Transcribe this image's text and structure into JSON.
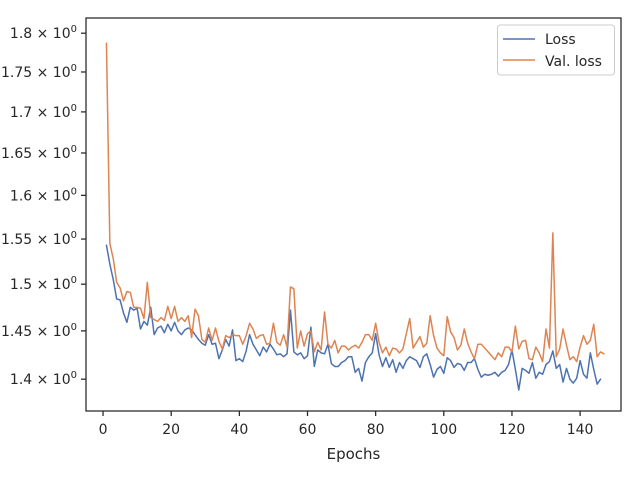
{
  "chart_data": {
    "type": "line",
    "title": "",
    "xlabel": "Epochs",
    "ylabel": "",
    "yscale": "log",
    "xlim": [
      -5,
      152
    ],
    "ylim": [
      1.368,
      1.82
    ],
    "grid": false,
    "legend_position": "top-right",
    "x_ticks": [
      {
        "value": 0,
        "label": "0"
      },
      {
        "value": 20,
        "label": "20"
      },
      {
        "value": 40,
        "label": "40"
      },
      {
        "value": 60,
        "label": "60"
      },
      {
        "value": 80,
        "label": "80"
      },
      {
        "value": 100,
        "label": "100"
      },
      {
        "value": 120,
        "label": "120"
      },
      {
        "value": 140,
        "label": "140"
      }
    ],
    "y_ticks": [
      {
        "value": 1.4,
        "mantissa": "1.4",
        "times": "×",
        "base": "10",
        "exp": "0"
      },
      {
        "value": 1.45,
        "mantissa": "1.45",
        "times": "×",
        "base": "10",
        "exp": "0"
      },
      {
        "value": 1.5,
        "mantissa": "1.5",
        "times": "×",
        "base": "10",
        "exp": "0"
      },
      {
        "value": 1.55,
        "mantissa": "1.55",
        "times": "×",
        "base": "10",
        "exp": "0"
      },
      {
        "value": 1.6,
        "mantissa": "1.6",
        "times": "×",
        "base": "10",
        "exp": "0"
      },
      {
        "value": 1.65,
        "mantissa": "1.65",
        "times": "×",
        "base": "10",
        "exp": "0"
      },
      {
        "value": 1.7,
        "mantissa": "1.7",
        "times": "×",
        "base": "10",
        "exp": "0"
      },
      {
        "value": 1.75,
        "mantissa": "1.75",
        "times": "×",
        "base": "10",
        "exp": "0"
      },
      {
        "value": 1.8,
        "mantissa": "1.8",
        "times": "×",
        "base": "10",
        "exp": "0"
      }
    ],
    "series": [
      {
        "name": "Loss",
        "color": "#4c72b0",
        "x_start": 1,
        "values": [
          1.543,
          1.522,
          1.505,
          1.484,
          1.483,
          1.469,
          1.459,
          1.475,
          1.472,
          1.474,
          1.452,
          1.46,
          1.456,
          1.475,
          1.446,
          1.453,
          1.455,
          1.448,
          1.457,
          1.45,
          1.459,
          1.45,
          1.446,
          1.451,
          1.453,
          1.451,
          1.446,
          1.441,
          1.437,
          1.435,
          1.446,
          1.436,
          1.437,
          1.421,
          1.43,
          1.441,
          1.434,
          1.451,
          1.419,
          1.421,
          1.418,
          1.429,
          1.446,
          1.436,
          1.43,
          1.424,
          1.433,
          1.428,
          1.436,
          1.431,
          1.425,
          1.426,
          1.423,
          1.426,
          1.472,
          1.428,
          1.425,
          1.427,
          1.421,
          1.424,
          1.454,
          1.413,
          1.43,
          1.427,
          1.426,
          1.436,
          1.416,
          1.413,
          1.413,
          1.417,
          1.419,
          1.423,
          1.423,
          1.407,
          1.411,
          1.398,
          1.417,
          1.423,
          1.427,
          1.447,
          1.425,
          1.413,
          1.422,
          1.412,
          1.42,
          1.407,
          1.417,
          1.411,
          1.419,
          1.423,
          1.421,
          1.419,
          1.412,
          1.423,
          1.426,
          1.415,
          1.402,
          1.41,
          1.413,
          1.406,
          1.422,
          1.419,
          1.412,
          1.416,
          1.415,
          1.409,
          1.417,
          1.417,
          1.421,
          1.41,
          1.402,
          1.405,
          1.404,
          1.405,
          1.407,
          1.403,
          1.407,
          1.409,
          1.415,
          1.43,
          1.41,
          1.389,
          1.411,
          1.409,
          1.406,
          1.417,
          1.401,
          1.407,
          1.405,
          1.415,
          1.418,
          1.429,
          1.411,
          1.415,
          1.397,
          1.411,
          1.4,
          1.396,
          1.401,
          1.419,
          1.405,
          1.401,
          1.427,
          1.41,
          1.395,
          1.4
        ]
      },
      {
        "name": "Val. loss",
        "color": "#dd8452",
        "x_start": 1,
        "values": [
          1.787,
          1.545,
          1.528,
          1.502,
          1.496,
          1.482,
          1.492,
          1.491,
          1.475,
          1.475,
          1.474,
          1.463,
          1.502,
          1.464,
          1.462,
          1.46,
          1.464,
          1.461,
          1.476,
          1.463,
          1.476,
          1.46,
          1.464,
          1.46,
          1.466,
          1.443,
          1.473,
          1.466,
          1.441,
          1.438,
          1.453,
          1.44,
          1.453,
          1.439,
          1.431,
          1.445,
          1.443,
          1.446,
          1.445,
          1.445,
          1.436,
          1.445,
          1.458,
          1.452,
          1.442,
          1.445,
          1.446,
          1.436,
          1.437,
          1.458,
          1.438,
          1.435,
          1.446,
          1.433,
          1.497,
          1.495,
          1.432,
          1.45,
          1.434,
          1.447,
          1.45,
          1.428,
          1.438,
          1.43,
          1.47,
          1.436,
          1.432,
          1.44,
          1.427,
          1.434,
          1.434,
          1.43,
          1.433,
          1.435,
          1.432,
          1.438,
          1.446,
          1.446,
          1.44,
          1.458,
          1.438,
          1.427,
          1.433,
          1.424,
          1.432,
          1.431,
          1.427,
          1.431,
          1.447,
          1.463,
          1.432,
          1.438,
          1.444,
          1.433,
          1.437,
          1.466,
          1.445,
          1.432,
          1.427,
          1.424,
          1.465,
          1.449,
          1.443,
          1.43,
          1.435,
          1.452,
          1.437,
          1.428,
          1.421,
          1.436,
          1.436,
          1.432,
          1.428,
          1.424,
          1.42,
          1.427,
          1.423,
          1.433,
          1.433,
          1.428,
          1.455,
          1.431,
          1.439,
          1.44,
          1.421,
          1.42,
          1.433,
          1.427,
          1.418,
          1.452,
          1.432,
          1.557,
          1.423,
          1.431,
          1.452,
          1.435,
          1.42,
          1.423,
          1.418,
          1.433,
          1.445,
          1.436,
          1.44,
          1.457,
          1.423,
          1.428,
          1.426
        ]
      }
    ]
  }
}
